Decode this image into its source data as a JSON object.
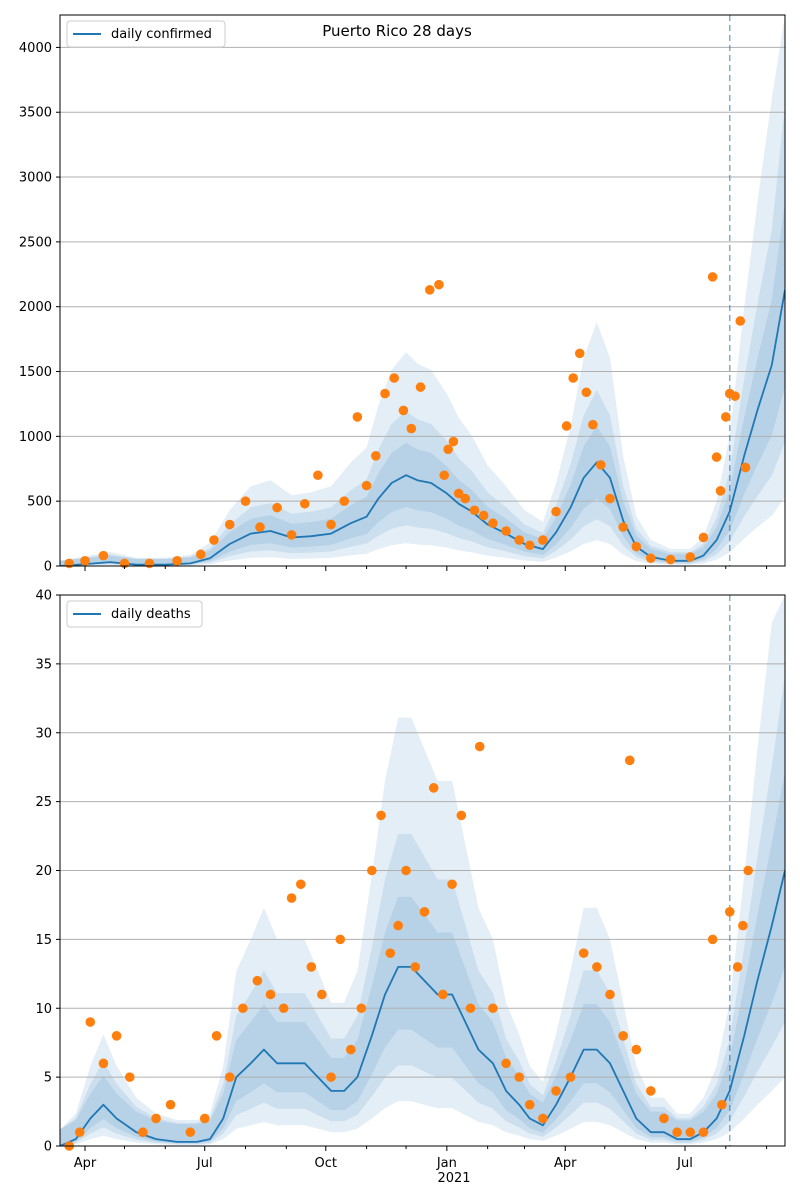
{
  "chart_data": [
    {
      "type": "line",
      "title": "Puerto Rico 28 days",
      "xlabel": "",
      "ylabel": "",
      "legend": {
        "placement": "top-left",
        "label": "daily confirmed"
      },
      "x_range": [
        "2020-03-13",
        "2021-09-15"
      ],
      "ylim": [
        0,
        4250
      ],
      "yticks": [
        0,
        500,
        1000,
        1500,
        2000,
        2500,
        3000,
        3500,
        4000
      ],
      "ytick_labels": [
        "0",
        "500",
        "1000",
        "1500",
        "2000",
        "2500",
        "3000",
        "3500",
        "4000"
      ],
      "grid": "horizontal",
      "forecast_start": "2021-08-04",
      "colors": {
        "series": "#1f77b4",
        "observed": "#ff7f0e",
        "band": "#1f77b4"
      },
      "series": [
        {
          "role": "line",
          "x": [
            "2020-03-13",
            "2020-04-01",
            "2020-04-20",
            "2020-05-10",
            "2020-06-01",
            "2020-06-20",
            "2020-07-05",
            "2020-07-20",
            "2020-08-05",
            "2020-08-20",
            "2020-09-05",
            "2020-09-20",
            "2020-10-05",
            "2020-10-20",
            "2020-11-01",
            "2020-11-10",
            "2020-11-20",
            "2020-12-01",
            "2020-12-10",
            "2020-12-20",
            "2021-01-01",
            "2021-01-10",
            "2021-01-20",
            "2021-02-01",
            "2021-02-15",
            "2021-03-01",
            "2021-03-15",
            "2021-03-25",
            "2021-04-05",
            "2021-04-15",
            "2021-04-25",
            "2021-05-05",
            "2021-05-15",
            "2021-05-25",
            "2021-06-05",
            "2021-06-20",
            "2021-07-05",
            "2021-07-15",
            "2021-07-25",
            "2021-08-04",
            "2021-08-15",
            "2021-08-25",
            "2021-09-05",
            "2021-09-15"
          ],
          "y": [
            0,
            15,
            30,
            10,
            10,
            20,
            60,
            170,
            250,
            270,
            220,
            230,
            250,
            330,
            380,
            520,
            640,
            700,
            660,
            640,
            560,
            480,
            420,
            320,
            250,
            170,
            130,
            260,
            450,
            680,
            800,
            680,
            350,
            150,
            70,
            40,
            40,
            80,
            200,
            420,
            850,
            1200,
            1550,
            2130
          ]
        },
        {
          "role": "markers",
          "x": [
            "2020-03-20",
            "2020-04-01",
            "2020-04-15",
            "2020-05-01",
            "2020-05-20",
            "2020-06-10",
            "2020-06-28",
            "2020-07-08",
            "2020-07-20",
            "2020-08-01",
            "2020-08-12",
            "2020-08-25",
            "2020-09-05",
            "2020-09-15",
            "2020-09-25",
            "2020-10-05",
            "2020-10-15",
            "2020-10-25",
            "2020-11-01",
            "2020-11-08",
            "2020-11-15",
            "2020-11-22",
            "2020-11-29",
            "2020-12-05",
            "2020-12-12",
            "2020-12-19",
            "2020-12-26",
            "2020-12-30",
            "2021-01-02",
            "2021-01-06",
            "2021-01-10",
            "2021-01-15",
            "2021-01-22",
            "2021-01-29",
            "2021-02-05",
            "2021-02-15",
            "2021-02-25",
            "2021-03-05",
            "2021-03-15",
            "2021-03-25",
            "2021-04-02",
            "2021-04-07",
            "2021-04-12",
            "2021-04-17",
            "2021-04-22",
            "2021-04-28",
            "2021-05-05",
            "2021-05-15",
            "2021-05-25",
            "2021-06-05",
            "2021-06-20",
            "2021-07-05",
            "2021-07-15",
            "2021-07-22",
            "2021-07-25",
            "2021-07-28",
            "2021-08-01",
            "2021-08-04",
            "2021-08-08",
            "2021-08-12",
            "2021-08-16"
          ],
          "y": [
            20,
            40,
            80,
            20,
            20,
            40,
            90,
            200,
            320,
            500,
            300,
            450,
            240,
            480,
            700,
            320,
            500,
            1150,
            620,
            850,
            1330,
            1450,
            1200,
            1060,
            1380,
            2130,
            2170,
            700,
            900,
            960,
            560,
            520,
            430,
            390,
            330,
            270,
            200,
            160,
            200,
            420,
            1080,
            1450,
            1640,
            1340,
            1090,
            780,
            520,
            300,
            150,
            60,
            50,
            70,
            220,
            2230,
            840,
            580,
            1150,
            1330,
            1310,
            1890,
            760
          ]
        }
      ]
    },
    {
      "type": "line",
      "title": "",
      "xlabel": "",
      "ylabel": "",
      "legend": {
        "placement": "top-left",
        "label": "daily deaths"
      },
      "x_range": [
        "2020-03-13",
        "2021-09-15"
      ],
      "ylim": [
        0,
        40
      ],
      "yticks": [
        0,
        5,
        10,
        15,
        20,
        25,
        30,
        35,
        40
      ],
      "ytick_labels": [
        "0",
        "5",
        "10",
        "15",
        "20",
        "25",
        "30",
        "35",
        "40"
      ],
      "grid": "horizontal",
      "forecast_start": "2021-08-04",
      "xtick_labels": [
        {
          "date": "2020-04-01",
          "label": "Apr"
        },
        {
          "date": "2020-07-01",
          "label": "Jul"
        },
        {
          "date": "2020-10-01",
          "label": "Oct"
        },
        {
          "date": "2021-01-01",
          "label": "Jan"
        },
        {
          "date": "2021-04-01",
          "label": "Apr"
        },
        {
          "date": "2021-07-01",
          "label": "Jul"
        }
      ],
      "year_label": "2021",
      "colors": {
        "series": "#1f77b4",
        "observed": "#ff7f0e",
        "band": "#1f77b4"
      },
      "series": [
        {
          "role": "line",
          "x": [
            "2020-03-13",
            "2020-03-25",
            "2020-04-05",
            "2020-04-15",
            "2020-04-25",
            "2020-05-10",
            "2020-05-25",
            "2020-06-10",
            "2020-06-25",
            "2020-07-05",
            "2020-07-15",
            "2020-07-25",
            "2020-08-05",
            "2020-08-15",
            "2020-08-25",
            "2020-09-05",
            "2020-09-15",
            "2020-09-25",
            "2020-10-05",
            "2020-10-15",
            "2020-10-25",
            "2020-11-05",
            "2020-11-15",
            "2020-11-25",
            "2020-12-05",
            "2020-12-15",
            "2020-12-25",
            "2021-01-05",
            "2021-01-15",
            "2021-01-25",
            "2021-02-05",
            "2021-02-15",
            "2021-02-25",
            "2021-03-05",
            "2021-03-15",
            "2021-03-25",
            "2021-04-05",
            "2021-04-15",
            "2021-04-25",
            "2021-05-05",
            "2021-05-15",
            "2021-05-25",
            "2021-06-05",
            "2021-06-15",
            "2021-06-25",
            "2021-07-05",
            "2021-07-15",
            "2021-07-25",
            "2021-08-04",
            "2021-08-15",
            "2021-08-25",
            "2021-09-05",
            "2021-09-15"
          ],
          "y": [
            0,
            0.5,
            2,
            3,
            2,
            1,
            0.5,
            0.3,
            0.3,
            0.5,
            2,
            5,
            6,
            7,
            6,
            6,
            6,
            5,
            4,
            4,
            5,
            8,
            11,
            13,
            13,
            12,
            11,
            11,
            9,
            7,
            6,
            4,
            3,
            2,
            1.5,
            3,
            5,
            7,
            7,
            6,
            4,
            2,
            1,
            1,
            0.5,
            0.5,
            1,
            2,
            4,
            8,
            12,
            16,
            20
          ]
        },
        {
          "role": "markers",
          "x": [
            "2020-03-20",
            "2020-03-28",
            "2020-04-05",
            "2020-04-15",
            "2020-04-25",
            "2020-05-05",
            "2020-05-15",
            "2020-05-25",
            "2020-06-05",
            "2020-06-20",
            "2020-07-01",
            "2020-07-10",
            "2020-07-20",
            "2020-07-30",
            "2020-08-10",
            "2020-08-20",
            "2020-08-30",
            "2020-09-05",
            "2020-09-12",
            "2020-09-20",
            "2020-09-28",
            "2020-10-05",
            "2020-10-12",
            "2020-10-20",
            "2020-10-28",
            "2020-11-05",
            "2020-11-12",
            "2020-11-19",
            "2020-11-25",
            "2020-12-01",
            "2020-12-08",
            "2020-12-15",
            "2020-12-22",
            "2020-12-29",
            "2021-01-05",
            "2021-01-12",
            "2021-01-19",
            "2021-01-26",
            "2021-02-05",
            "2021-02-15",
            "2021-02-25",
            "2021-03-05",
            "2021-03-15",
            "2021-03-25",
            "2021-04-05",
            "2021-04-15",
            "2021-04-25",
            "2021-05-05",
            "2021-05-15",
            "2021-05-20",
            "2021-05-25",
            "2021-06-05",
            "2021-06-15",
            "2021-06-25",
            "2021-07-05",
            "2021-07-15",
            "2021-07-22",
            "2021-07-29",
            "2021-08-04",
            "2021-08-10",
            "2021-08-14",
            "2021-08-18"
          ],
          "y": [
            0,
            1,
            9,
            6,
            8,
            5,
            1,
            2,
            3,
            1,
            2,
            8,
            5,
            10,
            12,
            11,
            10,
            18,
            19,
            13,
            11,
            5,
            15,
            7,
            10,
            20,
            24,
            14,
            16,
            20,
            13,
            17,
            26,
            11,
            19,
            24,
            10,
            29,
            10,
            6,
            5,
            3,
            2,
            4,
            5,
            14,
            13,
            11,
            8,
            28,
            7,
            4,
            2,
            1,
            1,
            1,
            15,
            3,
            17,
            13,
            16,
            20
          ]
        }
      ]
    }
  ]
}
